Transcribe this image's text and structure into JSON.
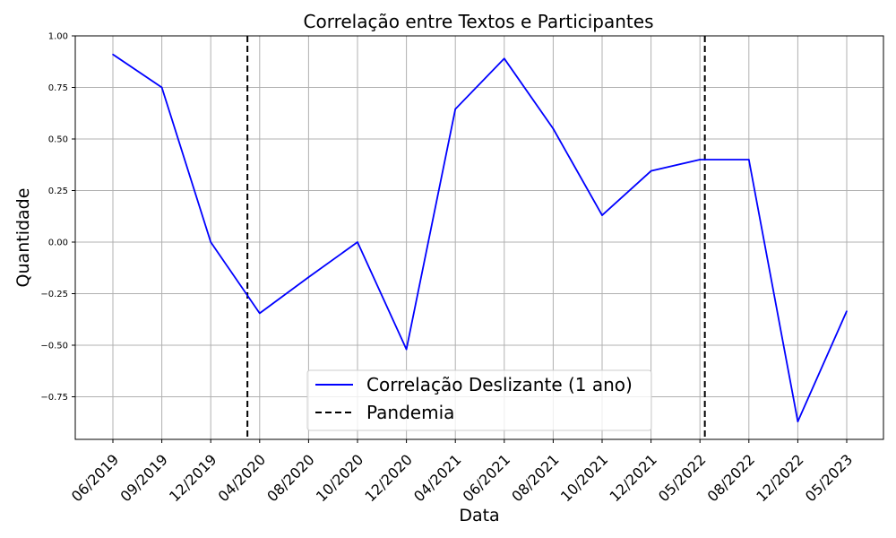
{
  "chart_data": {
    "type": "line",
    "title": "Correlação entre Textos e Participantes",
    "xlabel": "Data",
    "ylabel": "Quantidade",
    "categories": [
      "06/2019",
      "09/2019",
      "12/2019",
      "04/2020",
      "08/2020",
      "10/2020",
      "12/2020",
      "04/2021",
      "06/2021",
      "08/2021",
      "10/2021",
      "12/2021",
      "05/2022",
      "08/2022",
      "12/2022",
      "05/2023"
    ],
    "series": [
      {
        "name": "Correlação Deslizante (1 ano)",
        "color": "#0000ff",
        "values": [
          0.91,
          0.75,
          0.0,
          -0.345,
          -0.17,
          0.0,
          -0.52,
          0.645,
          0.89,
          0.55,
          0.13,
          0.345,
          0.4,
          0.4,
          -0.87,
          -0.335
        ]
      }
    ],
    "vlines": [
      {
        "name": "Pandemia",
        "color": "#000000",
        "style": "dashed",
        "x": "03/2020"
      },
      {
        "name": "Pandemia",
        "color": "#000000",
        "style": "dashed",
        "x": "05/2022"
      }
    ],
    "ylim": [
      -0.96,
      1.0
    ],
    "yticks": [
      1.0,
      0.75,
      0.5,
      0.25,
      0.0,
      -0.25,
      -0.5,
      -0.75
    ],
    "ytick_labels": [
      "1.00",
      "0.75",
      "0.50",
      "0.25",
      "0.00",
      "−0.25",
      "−0.50",
      "−0.75"
    ],
    "grid": true,
    "legend": {
      "placement": "lower center",
      "entries": [
        {
          "label": "Correlação Deslizante (1 ano)",
          "color": "#0000ff",
          "style": "solid"
        },
        {
          "label": "Pandemia",
          "color": "#000000",
          "style": "dashed"
        }
      ]
    }
  }
}
